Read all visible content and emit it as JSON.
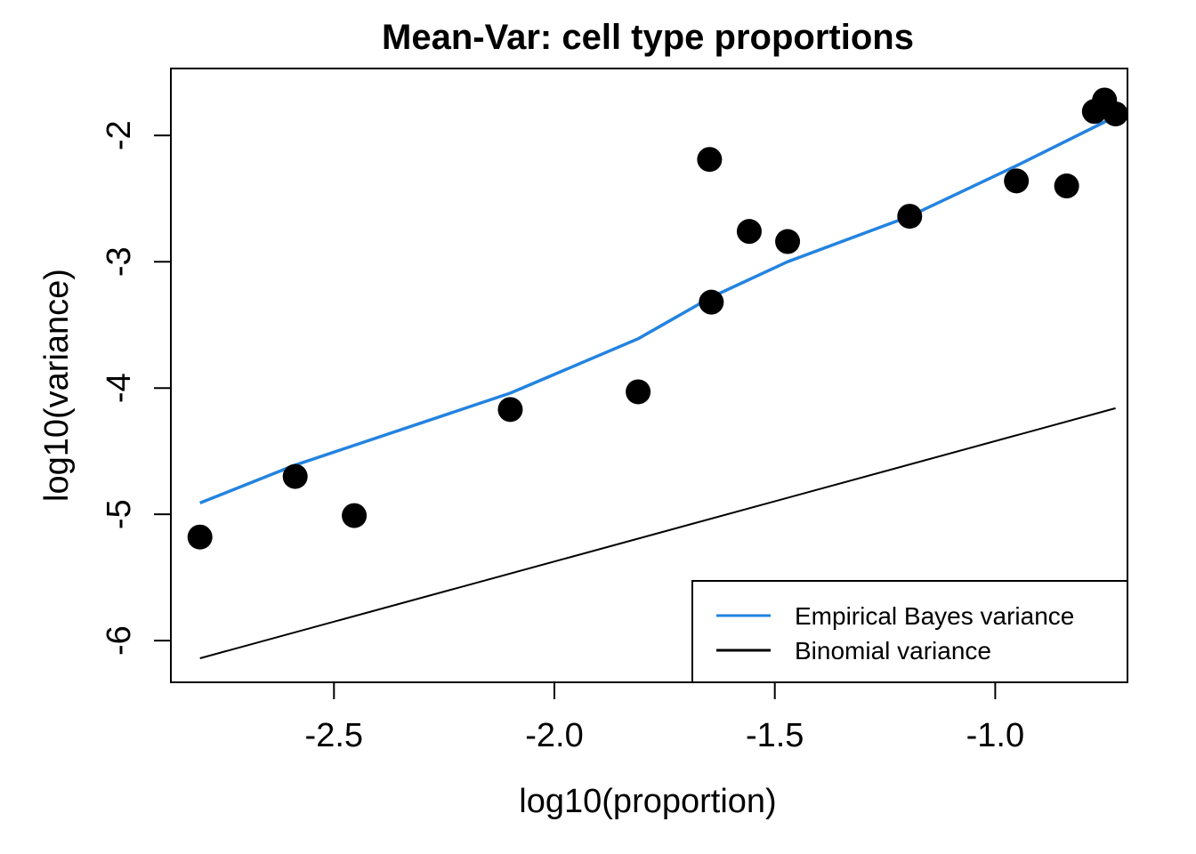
{
  "chart_data": {
    "type": "scatter",
    "title": "Mean-Var: cell type proportions",
    "xlabel": "log10(proportion)",
    "ylabel": "log10(variance)",
    "xlim": [
      -2.87,
      -0.7
    ],
    "ylim": [
      -6.33,
      -1.47
    ],
    "x_ticks": [
      -2.5,
      -2.0,
      -1.5,
      -1.0
    ],
    "x_tick_labels": [
      "-2.5",
      "-2.0",
      "-1.5",
      "-1.0"
    ],
    "y_ticks": [
      -2,
      -3,
      -4,
      -5,
      -6
    ],
    "y_tick_labels": [
      "-2",
      "-3",
      "-4",
      "-5",
      "-6"
    ],
    "grid": false,
    "legend_position": "bottom-right",
    "points": {
      "name": "cell types",
      "color": "#000000",
      "x": [
        -2.804,
        -2.588,
        -2.454,
        -2.1,
        -1.81,
        -1.648,
        -1.644,
        -1.558,
        -1.471,
        -1.194,
        -0.952,
        -0.838,
        -0.775,
        -0.752,
        -0.727
      ],
      "y": [
        -5.18,
        -4.7,
        -5.01,
        -4.17,
        -4.03,
        -2.19,
        -3.32,
        -2.76,
        -2.84,
        -2.64,
        -2.36,
        -2.4,
        -1.81,
        -1.72,
        -1.83
      ]
    },
    "series": [
      {
        "name": "Empirical Bayes variance",
        "type": "line",
        "color": "#2383E0",
        "x": [
          -2.804,
          -2.588,
          -2.1,
          -1.81,
          -1.644,
          -1.471,
          -1.194,
          -0.952,
          -0.727
        ],
        "y": [
          -4.91,
          -4.61,
          -4.04,
          -3.61,
          -3.28,
          -3.0,
          -2.64,
          -2.24,
          -1.85
        ]
      },
      {
        "name": "Binomial variance",
        "type": "line",
        "color": "#000000",
        "x": [
          -2.804,
          -0.727
        ],
        "y": [
          -6.14,
          -4.16
        ]
      }
    ],
    "legend": [
      {
        "label": "Empirical Bayes variance",
        "color": "#2383E0"
      },
      {
        "label": "Binomial variance",
        "color": "#000000"
      }
    ]
  }
}
